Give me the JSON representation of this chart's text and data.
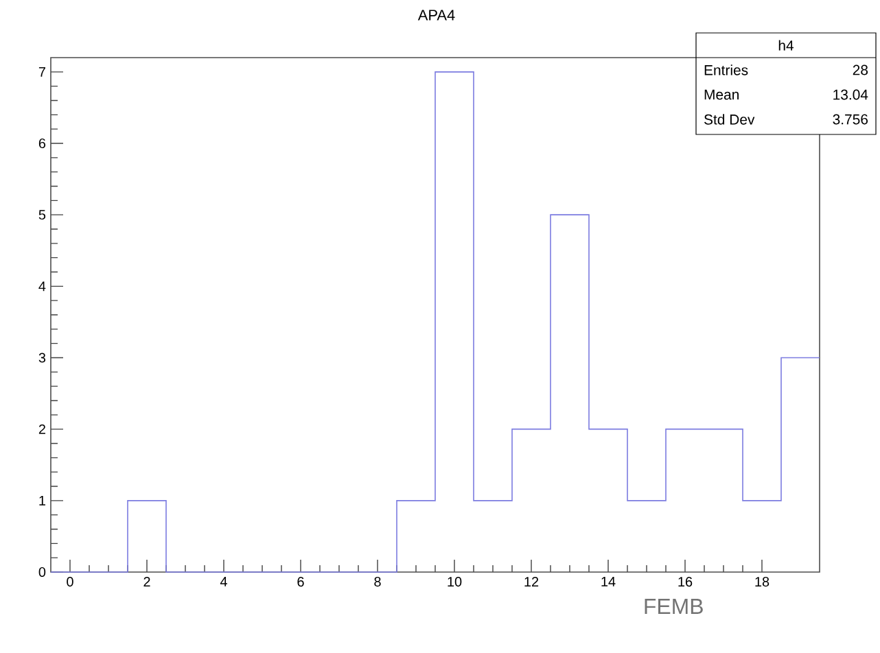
{
  "chart_data": {
    "type": "histogram",
    "title": "APA4",
    "xlabel": "FEMB",
    "bins": [
      -0.5,
      0.5,
      1.5,
      2.5,
      3.5,
      4.5,
      5.5,
      6.5,
      7.5,
      8.5,
      9.5,
      10.5,
      11.5,
      12.5,
      13.5,
      14.5,
      15.5,
      16.5,
      17.5,
      18.5,
      19.5
    ],
    "values": [
      0,
      0,
      1,
      0,
      0,
      0,
      0,
      0,
      0,
      1,
      7,
      1,
      2,
      5,
      2,
      1,
      2,
      2,
      1,
      3
    ],
    "color": "#7b7be0",
    "xlim": [
      -0.5,
      19.5
    ],
    "ylim": [
      0,
      7.2
    ],
    "xticks": [
      0,
      2,
      4,
      6,
      8,
      10,
      12,
      14,
      16,
      18
    ],
    "yticks": [
      0,
      1,
      2,
      3,
      4,
      5,
      6,
      7
    ],
    "grid": false,
    "annotations": [
      "h4",
      "Entries",
      "28",
      "Mean",
      "13.04",
      "Std Dev",
      "3.756"
    ]
  }
}
